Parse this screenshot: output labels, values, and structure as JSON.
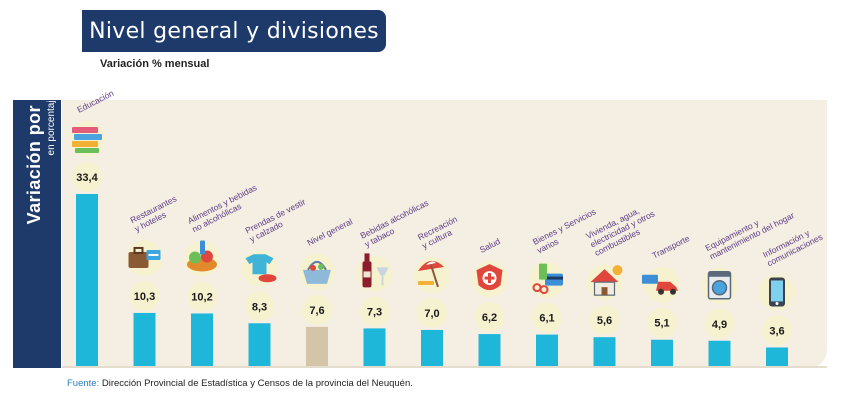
{
  "title": "Nivel general y divisiones",
  "subtitle": "Variación % mensual",
  "sidebar": {
    "main": "Variación por divisiones",
    "sub": "en porcentaje (%)"
  },
  "source": {
    "label": "Fuente:",
    "text": "Dirección Provincial de Estadística y Censos de la provincia del Neuquén."
  },
  "colors": {
    "bar": "#1fb7d9",
    "highlight_bar": "#d4c4a8",
    "label_text": "#5b3b86",
    "bubble": "#f6f1cf",
    "title_bg": "#1d3a6b"
  },
  "chart_data": {
    "type": "bar",
    "categories": [
      [
        "Educación"
      ],
      [
        "Restaurantes",
        "y hoteles"
      ],
      [
        "Alimentos y bebidas",
        "no alcohólicas"
      ],
      [
        "Prendas de vestir",
        "y calzado"
      ],
      [
        "Nivel general"
      ],
      [
        "Bebidas alcohólicas",
        "y tabaco"
      ],
      [
        "Recreación",
        "y cultura"
      ],
      [
        "Salud"
      ],
      [
        "Bienes y Servicios",
        "varios"
      ],
      [
        "Vivienda, agua,",
        "electricidad y otros",
        "combustibles"
      ],
      [
        "Transporte"
      ],
      [
        "Equipamiento y",
        "mantenimiento del hogar"
      ],
      [
        "Información y",
        "comunicaciones"
      ]
    ],
    "values": [
      33.4,
      10.3,
      10.2,
      8.3,
      7.6,
      7.3,
      7.0,
      6.2,
      6.1,
      5.6,
      5.1,
      4.9,
      3.6
    ],
    "value_labels": [
      "33,4",
      "10,3",
      "10,2",
      "8,3",
      "7,6",
      "7,3",
      "7,0",
      "6,2",
      "6,1",
      "5,6",
      "5,1",
      "4,9",
      "3,6"
    ],
    "highlight_index": 4,
    "icons": [
      "books-icon",
      "suitcase-icon",
      "groceries-icon",
      "clothing-icon",
      "basket-icon",
      "wine-icon",
      "beach-umbrella-icon",
      "health-shield-icon",
      "services-icon",
      "house-icon",
      "car-icon",
      "washing-machine-icon",
      "smartphone-icon"
    ],
    "ylim": [
      0,
      35
    ]
  }
}
